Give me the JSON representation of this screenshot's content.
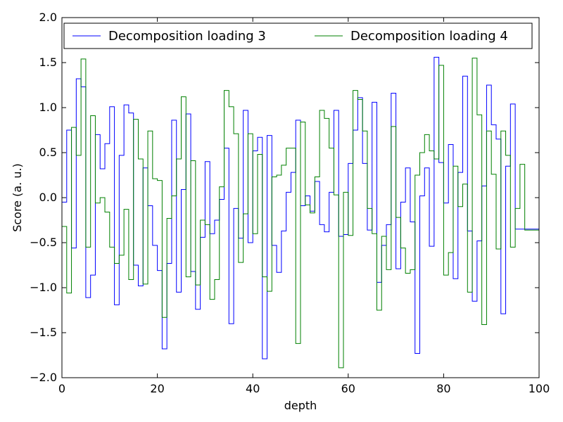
{
  "chart_data": {
    "type": "line",
    "drawstyle": "steps-post",
    "title": "",
    "xlabel": "depth",
    "ylabel": "Score (a. u.)",
    "xlim": [
      0,
      100
    ],
    "ylim": [
      -2.0,
      2.0
    ],
    "xticks": [
      0,
      20,
      40,
      60,
      80,
      100
    ],
    "yticks": [
      -2.0,
      -1.5,
      -1.0,
      -0.5,
      0.0,
      0.5,
      1.0,
      1.5,
      2.0
    ],
    "xtick_labels": [
      "0",
      "20",
      "40",
      "60",
      "80",
      "100"
    ],
    "ytick_labels": [
      "−2.0",
      "−1.5",
      "−1.0",
      "−0.5",
      "0.0",
      "0.5",
      "1.0",
      "1.5",
      "2.0"
    ],
    "grid": false,
    "legend_placement": "top (upper), two columns",
    "x": [
      0,
      1,
      2,
      3,
      4,
      5,
      6,
      7,
      8,
      9,
      10,
      11,
      12,
      13,
      14,
      15,
      16,
      17,
      18,
      19,
      20,
      21,
      22,
      23,
      24,
      25,
      26,
      27,
      28,
      29,
      30,
      31,
      32,
      33,
      34,
      35,
      36,
      37,
      38,
      39,
      40,
      41,
      42,
      43,
      44,
      45,
      46,
      47,
      48,
      49,
      50,
      51,
      52,
      53,
      54,
      55,
      56,
      57,
      58,
      59,
      60,
      61,
      62,
      63,
      64,
      65,
      66,
      67,
      68,
      69,
      70,
      71,
      72,
      73,
      74,
      75,
      76,
      77,
      78,
      79,
      80,
      81,
      82,
      83,
      84,
      85,
      86,
      87,
      88,
      89,
      90,
      91,
      92,
      93,
      94,
      95,
      96,
      97,
      98,
      99
    ],
    "series": [
      {
        "name": "Decomposition loading 3",
        "color": "#0000ff",
        "values": [
          -0.05,
          0.75,
          -0.56,
          1.32,
          1.23,
          -1.11,
          -0.86,
          0.7,
          0.32,
          0.6,
          1.01,
          -1.19,
          0.47,
          1.03,
          0.94,
          -0.75,
          -0.98,
          0.33,
          -0.09,
          -0.53,
          -0.81,
          -1.68,
          -0.73,
          0.86,
          -1.05,
          0.09,
          0.93,
          -0.82,
          -1.24,
          -0.44,
          0.4,
          -0.4,
          -0.25,
          -0.02,
          0.55,
          -1.4,
          -0.12,
          -0.45,
          0.97,
          -0.5,
          0.52,
          0.67,
          -1.79,
          0.69,
          -0.53,
          -0.83,
          -0.37,
          0.06,
          0.28,
          0.86,
          -0.09,
          0.02,
          -0.15,
          0.18,
          -0.3,
          -0.38,
          0.06,
          0.97,
          -0.43,
          -0.41,
          0.38,
          0.75,
          1.11,
          0.38,
          -0.36,
          1.06,
          -0.94,
          -0.53,
          -0.3,
          1.16,
          -0.79,
          -0.05,
          0.33,
          -0.27,
          -1.73,
          0.02,
          0.33,
          -0.54,
          1.56,
          0.39,
          -0.06,
          0.59,
          -0.9,
          0.28,
          1.35,
          -0.37,
          -1.15,
          -0.48,
          0.13,
          1.25,
          0.81,
          0.65,
          -1.29,
          0.35,
          1.04,
          -0.35,
          -0.35,
          -0.35,
          -0.35,
          -0.35
        ]
      },
      {
        "name": "Decomposition loading 4",
        "color": "#008000",
        "values": [
          -0.32,
          -1.06,
          0.78,
          0.47,
          1.54,
          -0.55,
          0.91,
          -0.06,
          0.0,
          -0.16,
          -0.55,
          -0.73,
          -0.64,
          -0.13,
          -0.91,
          0.87,
          0.43,
          -0.96,
          0.74,
          0.21,
          0.19,
          -1.33,
          -0.23,
          0.02,
          0.43,
          1.12,
          -0.88,
          0.41,
          -0.97,
          -0.25,
          -0.3,
          -1.13,
          -0.91,
          0.12,
          1.19,
          1.01,
          0.71,
          -0.72,
          -0.18,
          0.71,
          -0.4,
          0.48,
          -0.88,
          -1.04,
          0.23,
          0.25,
          0.36,
          0.55,
          0.55,
          -1.62,
          0.84,
          -0.08,
          -0.17,
          0.23,
          0.97,
          0.88,
          0.55,
          0.03,
          -1.89,
          0.06,
          -0.42,
          1.19,
          1.09,
          0.74,
          -0.12,
          -0.4,
          -1.25,
          -0.43,
          -0.8,
          0.79,
          -0.22,
          -0.56,
          -0.84,
          -0.8,
          0.25,
          0.5,
          0.7,
          0.52,
          0.43,
          1.47,
          -0.86,
          -0.61,
          0.35,
          -0.1,
          0.15,
          -1.05,
          1.55,
          0.92,
          -1.41,
          0.74,
          0.26,
          -0.57,
          0.74,
          0.47,
          -0.55,
          -0.12,
          0.37,
          -0.36,
          -0.36,
          -0.36
        ]
      }
    ]
  }
}
